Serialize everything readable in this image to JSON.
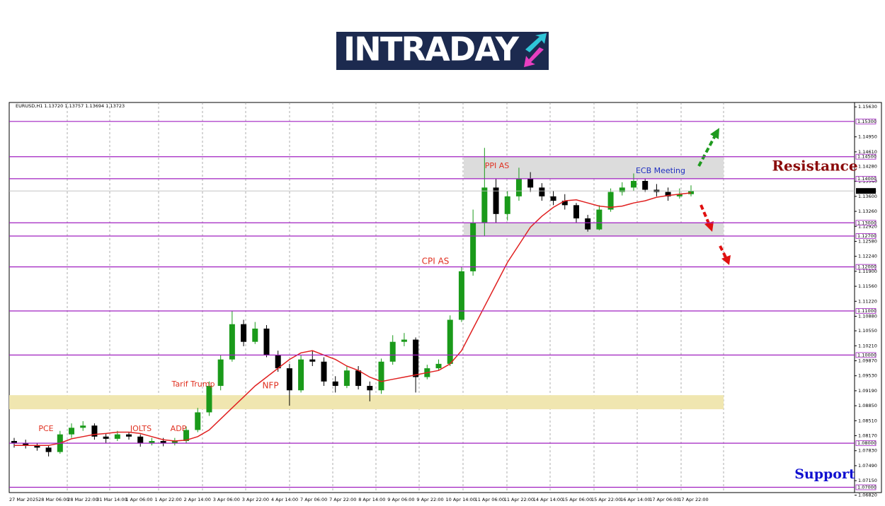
{
  "logo": "INTRADAY",
  "chart_data": {
    "type": "candlestick",
    "header": "EURUSD,H1  1.13720 1.13757 1.13694 1.13723",
    "ylim": [
      1.0688,
      1.1573
    ],
    "yticks": [
      {
        "value": 1.1563,
        "label": "1.15630"
      },
      {
        "value": 1.1495,
        "label": "1.14950"
      },
      {
        "value": 1.1461,
        "label": "1.14610"
      },
      {
        "value": 1.1428,
        "label": "1.14280"
      },
      {
        "value": 1.1394,
        "label": "1.13940"
      },
      {
        "value": 1.136,
        "label": "1.13600"
      },
      {
        "value": 1.1326,
        "label": "1.13260"
      },
      {
        "value": 1.1292,
        "label": "1.12920"
      },
      {
        "value": 1.1258,
        "label": "1.12580"
      },
      {
        "value": 1.1224,
        "label": "1.12240"
      },
      {
        "value": 1.119,
        "label": "1.11900"
      },
      {
        "value": 1.1156,
        "label": "1.11560"
      },
      {
        "value": 1.1122,
        "label": "1.11220"
      },
      {
        "value": 1.1088,
        "label": "1.10880"
      },
      {
        "value": 1.1055,
        "label": "1.10550"
      },
      {
        "value": 1.1021,
        "label": "1.10210"
      },
      {
        "value": 1.0987,
        "label": "1.09870"
      },
      {
        "value": 1.0953,
        "label": "1.09530"
      },
      {
        "value": 1.0919,
        "label": "1.09190"
      },
      {
        "value": 1.0885,
        "label": "1.08850"
      },
      {
        "value": 1.0851,
        "label": "1.08510"
      },
      {
        "value": 1.0817,
        "label": "1.08170"
      },
      {
        "value": 1.0783,
        "label": "1.07830"
      },
      {
        "value": 1.0749,
        "label": "1.07490"
      },
      {
        "value": 1.0715,
        "label": "1.07150"
      },
      {
        "value": 1.0682,
        "label": "1.06820"
      }
    ],
    "xtick_labels": [
      "27 Mar 2025",
      "28 Mar 06:00",
      "28 Mar 22:00",
      "31 Mar 14:00",
      "1 Apr 06:00",
      "1 Apr 22:00",
      "2 Apr 14:00",
      "3 Apr 06:00",
      "3 Apr 22:00",
      "4 Apr 14:00",
      "7 Apr 06:00",
      "7 Apr 22:00",
      "8 Apr 14:00",
      "9 Apr 06:00",
      "9 Apr 22:00",
      "10 Apr 14:00",
      "11 Apr 06:00",
      "11 Apr 22:00",
      "14 Apr 14:00",
      "15 Apr 06:00",
      "15 Apr 22:00",
      "16 Apr 14:00",
      "17 Apr 06:00",
      "17 Apr 22:00"
    ],
    "levels": [
      {
        "value": 1.153,
        "label": "1.15300"
      },
      {
        "value": 1.145,
        "label": "1.14500"
      },
      {
        "value": 1.14,
        "label": "1.14000"
      },
      {
        "value": 1.13,
        "label": "1.13000"
      },
      {
        "value": 1.127,
        "label": "1.12700"
      },
      {
        "value": 1.12,
        "label": "1.12000"
      },
      {
        "value": 1.11,
        "label": "1.11000"
      },
      {
        "value": 1.1,
        "label": "1.10000"
      },
      {
        "value": 1.08,
        "label": "1.08000"
      },
      {
        "value": 1.07,
        "label": "1.07000"
      }
    ],
    "level_color": "#a020c0",
    "current_price": {
      "value": 1.13723,
      "label": "1.13723"
    },
    "zones": [
      {
        "from": 1.145,
        "to": 1.14,
        "color": "#dcdcdc"
      },
      {
        "from": 1.13,
        "to": 1.127,
        "color": "#dcdcdc"
      },
      {
        "from": 1.0909,
        "to": 1.0877,
        "color": "#f0e6b0"
      }
    ],
    "annotations": [
      {
        "text": "PCE",
        "color": "#e03020"
      },
      {
        "text": "JOLTS",
        "color": "#e03020"
      },
      {
        "text": "ADP",
        "color": "#e03020"
      },
      {
        "text": "Tarif Trump",
        "color": "#e03020"
      },
      {
        "text": "NFP",
        "color": "#e03020"
      },
      {
        "text": "CPI AS",
        "color": "#e03020"
      },
      {
        "text": "PPI AS",
        "color": "#e03020"
      },
      {
        "text": "ECB Meeting",
        "color": "#2030c0"
      },
      {
        "text": "Resistance",
        "color": "#8b0a0a"
      },
      {
        "text": "Support",
        "color": "#1010d0"
      }
    ],
    "up_color": "#1a9a1a",
    "down_color": "#000000",
    "ma_color": "#e02020",
    "open": [
      1.0805,
      1.08,
      1.0795,
      1.079,
      1.078,
      1.082,
      1.0835,
      1.084,
      1.0815,
      1.081,
      1.082,
      1.0815,
      1.08,
      1.0805,
      1.08,
      1.0805,
      1.083,
      1.087,
      1.093,
      1.099,
      1.107,
      1.103,
      1.106,
      1.1,
      1.097,
      1.092,
      1.099,
      1.0985,
      1.094,
      1.093,
      1.0965,
      1.093,
      1.092,
      1.0985,
      1.103,
      1.1035,
      1.095,
      1.097,
      1.098,
      1.108,
      1.119,
      1.13,
      1.138,
      1.132,
      1.136,
      1.14,
      1.138,
      1.136,
      1.135,
      1.134,
      1.131,
      1.1285,
      1.133,
      1.137,
      1.138,
      1.1395,
      1.1375,
      1.137,
      1.136,
      1.1365
    ],
    "high": [
      1.0812,
      1.0808,
      1.08,
      1.0795,
      1.0828,
      1.0845,
      1.085,
      1.0845,
      1.0822,
      1.0828,
      1.0826,
      1.082,
      1.0812,
      1.0812,
      1.0812,
      1.0838,
      1.088,
      1.094,
      1.1,
      1.11,
      1.108,
      1.1075,
      1.1068,
      1.101,
      1.098,
      1.1,
      1.101,
      1.0995,
      1.0952,
      1.0975,
      1.0975,
      1.094,
      1.0992,
      1.1045,
      1.105,
      1.104,
      1.0978,
      1.099,
      1.109,
      1.12,
      1.133,
      1.147,
      1.14,
      1.1372,
      1.1425,
      1.1415,
      1.139,
      1.1372,
      1.1365,
      1.1345,
      1.1318,
      1.134,
      1.1378,
      1.1392,
      1.1412,
      1.14,
      1.1388,
      1.138,
      1.1378,
      1.1385
    ],
    "low": [
      1.079,
      1.0788,
      1.0783,
      1.077,
      1.0776,
      1.0812,
      1.0828,
      1.0808,
      1.08,
      1.0805,
      1.0808,
      1.0792,
      1.0795,
      1.0793,
      1.0795,
      1.08,
      1.0825,
      1.0862,
      1.092,
      1.0985,
      1.102,
      1.1025,
      1.0995,
      1.0962,
      1.0885,
      1.0915,
      1.0975,
      1.093,
      1.0915,
      1.0925,
      1.0922,
      1.0895,
      1.0912,
      1.0978,
      1.102,
      1.0915,
      1.0945,
      1.0965,
      1.0975,
      1.1075,
      1.118,
      1.127,
      1.13,
      1.1305,
      1.135,
      1.137,
      1.135,
      1.134,
      1.133,
      1.13,
      1.128,
      1.1283,
      1.1325,
      1.1362,
      1.1372,
      1.137,
      1.136,
      1.135,
      1.1355,
      1.136
    ],
    "close": [
      1.08,
      1.0795,
      1.079,
      1.078,
      1.082,
      1.0835,
      1.084,
      1.0815,
      1.081,
      1.082,
      1.0815,
      1.08,
      1.0805,
      1.08,
      1.0805,
      1.083,
      1.087,
      1.093,
      1.099,
      1.107,
      1.103,
      1.106,
      1.1,
      1.097,
      1.092,
      1.099,
      1.0985,
      1.094,
      1.093,
      1.0965,
      1.093,
      1.092,
      1.0985,
      1.103,
      1.1035,
      1.095,
      1.097,
      1.098,
      1.108,
      1.119,
      1.13,
      1.138,
      1.132,
      1.136,
      1.14,
      1.138,
      1.136,
      1.135,
      1.134,
      1.131,
      1.1285,
      1.133,
      1.137,
      1.138,
      1.1395,
      1.1375,
      1.137,
      1.136,
      1.1365,
      1.1372
    ],
    "ma": [
      1.0795,
      1.0795,
      1.0795,
      1.0795,
      1.08,
      1.081,
      1.0815,
      1.082,
      1.0822,
      1.0825,
      1.0825,
      1.0822,
      1.0815,
      1.0808,
      1.0805,
      1.0807,
      1.0815,
      1.083,
      1.0855,
      1.088,
      1.0905,
      1.093,
      1.095,
      1.097,
      1.099,
      1.1005,
      1.101,
      1.1,
      1.099,
      1.0975,
      1.0965,
      1.095,
      1.094,
      1.0945,
      1.095,
      1.0955,
      1.096,
      1.0965,
      1.098,
      1.101,
      1.106,
      1.111,
      1.116,
      1.121,
      1.125,
      1.129,
      1.1315,
      1.1335,
      1.135,
      1.1352,
      1.1345,
      1.1338,
      1.1335,
      1.1338,
      1.1345,
      1.135,
      1.1358,
      1.1362,
      1.1365,
      1.1368
    ]
  }
}
